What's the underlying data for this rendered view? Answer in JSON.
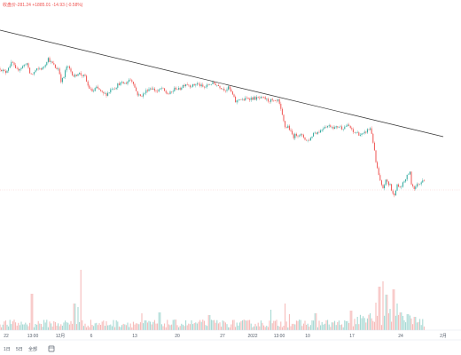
{
  "header": {
    "ohlc_text": "收盘价-281.24 +1885.01 -14.93 (-0.58%)",
    "change_color": "#ef5350"
  },
  "timeframes": [
    "1日",
    "5日",
    "全部"
  ],
  "colors": {
    "up": "#26a69a",
    "down": "#ef5350",
    "up_volume": "#9fd6cf",
    "down_volume": "#f5b5b3",
    "trendline": "#333333",
    "price_line": "#f8c8c6",
    "axis_text": "#555e6b"
  },
  "chart_data": {
    "type": "candlestick",
    "x_ticks": [
      "22",
      "13:00",
      "12月",
      "6",
      "13",
      "20",
      "27",
      "2022",
      "13:00",
      "10",
      "17",
      "24",
      "2月"
    ],
    "price_range": [
      0,
      100
    ],
    "volume_range": [
      0,
      100
    ],
    "anchors": [
      [
        0,
        72
      ],
      [
        6,
        70
      ],
      [
        10,
        73
      ],
      [
        14,
        75
      ],
      [
        18,
        71
      ],
      [
        22,
        72
      ],
      [
        26,
        73
      ],
      [
        30,
        75
      ],
      [
        33,
        70
      ],
      [
        36,
        69
      ],
      [
        40,
        71
      ],
      [
        44,
        72
      ],
      [
        48,
        72
      ],
      [
        51,
        74
      ],
      [
        54,
        77
      ],
      [
        57,
        75
      ],
      [
        60,
        74
      ],
      [
        63,
        72
      ],
      [
        66,
        72
      ],
      [
        69,
        66
      ],
      [
        72,
        68
      ],
      [
        75,
        73
      ],
      [
        78,
        72
      ],
      [
        81,
        70
      ],
      [
        84,
        68
      ],
      [
        88,
        70
      ],
      [
        92,
        69
      ],
      [
        96,
        68
      ],
      [
        99,
        64
      ],
      [
        102,
        62
      ],
      [
        105,
        61
      ],
      [
        108,
        63
      ],
      [
        112,
        62
      ],
      [
        116,
        60
      ],
      [
        120,
        60
      ],
      [
        123,
        61
      ],
      [
        126,
        63
      ],
      [
        130,
        63
      ],
      [
        134,
        65
      ],
      [
        138,
        65
      ],
      [
        142,
        65
      ],
      [
        146,
        67
      ],
      [
        150,
        66
      ],
      [
        152,
        63
      ],
      [
        155,
        60
      ],
      [
        158,
        59
      ],
      [
        162,
        60
      ],
      [
        166,
        62
      ],
      [
        170,
        63
      ],
      [
        174,
        62
      ],
      [
        178,
        61
      ],
      [
        182,
        63
      ],
      [
        186,
        61
      ],
      [
        190,
        60
      ],
      [
        194,
        61
      ],
      [
        198,
        63
      ],
      [
        202,
        62
      ],
      [
        206,
        64
      ],
      [
        210,
        65
      ],
      [
        214,
        64
      ],
      [
        218,
        64
      ],
      [
        222,
        65
      ],
      [
        226,
        64
      ],
      [
        230,
        63
      ],
      [
        234,
        64
      ],
      [
        238,
        65
      ],
      [
        242,
        65
      ],
      [
        246,
        64
      ],
      [
        250,
        63
      ],
      [
        254,
        62
      ],
      [
        258,
        63
      ],
      [
        262,
        60
      ],
      [
        264,
        58
      ],
      [
        266,
        56
      ],
      [
        270,
        58
      ],
      [
        274,
        57
      ],
      [
        278,
        58
      ],
      [
        282,
        58
      ],
      [
        286,
        58
      ],
      [
        290,
        58
      ],
      [
        294,
        58
      ],
      [
        298,
        58
      ],
      [
        302,
        57
      ],
      [
        306,
        57
      ],
      [
        310,
        56
      ],
      [
        314,
        57
      ],
      [
        317,
        52
      ],
      [
        320,
        47
      ],
      [
        322,
        44
      ],
      [
        325,
        45
      ],
      [
        328,
        42
      ],
      [
        331,
        40
      ],
      [
        334,
        41
      ],
      [
        338,
        41
      ],
      [
        342,
        40
      ],
      [
        346,
        38
      ],
      [
        350,
        39
      ],
      [
        354,
        42
      ],
      [
        358,
        42
      ],
      [
        362,
        43
      ],
      [
        366,
        45
      ],
      [
        370,
        45
      ],
      [
        374,
        45
      ],
      [
        378,
        44
      ],
      [
        382,
        45
      ],
      [
        386,
        44
      ],
      [
        390,
        45
      ],
      [
        394,
        45
      ],
      [
        398,
        42
      ],
      [
        402,
        42
      ],
      [
        406,
        41
      ],
      [
        410,
        41
      ],
      [
        414,
        43
      ],
      [
        418,
        44
      ],
      [
        420,
        40
      ],
      [
        422,
        34
      ],
      [
        424,
        28
      ],
      [
        426,
        24
      ],
      [
        428,
        20
      ],
      [
        430,
        17
      ],
      [
        432,
        16
      ],
      [
        434,
        18
      ],
      [
        436,
        20
      ],
      [
        438,
        17
      ],
      [
        440,
        18
      ],
      [
        442,
        14
      ],
      [
        444,
        12
      ],
      [
        446,
        15
      ],
      [
        448,
        17
      ],
      [
        452,
        16
      ],
      [
        456,
        19
      ],
      [
        460,
        22
      ],
      [
        462,
        24
      ],
      [
        464,
        18
      ],
      [
        467,
        16
      ],
      [
        470,
        17
      ],
      [
        472,
        18
      ],
      [
        474,
        18
      ],
      [
        476,
        20
      ],
      [
        479,
        20
      ]
    ],
    "volume_spikes": [
      [
        36,
        41
      ],
      [
        91,
        68
      ],
      [
        84,
        30
      ],
      [
        88,
        26
      ],
      [
        160,
        19
      ],
      [
        180,
        20
      ],
      [
        236,
        17
      ],
      [
        306,
        23
      ],
      [
        322,
        30
      ],
      [
        326,
        18
      ],
      [
        356,
        19
      ],
      [
        396,
        22
      ],
      [
        418,
        19
      ],
      [
        424,
        31
      ],
      [
        428,
        49
      ],
      [
        432,
        55
      ],
      [
        436,
        40
      ],
      [
        440,
        24
      ],
      [
        444,
        46
      ],
      [
        448,
        30
      ],
      [
        452,
        20
      ],
      [
        460,
        18
      ],
      [
        468,
        15
      ]
    ],
    "trendline": [
      [
        0,
        90
      ],
      [
        100,
        80
      ],
      [
        200,
        70
      ],
      [
        300,
        60
      ],
      [
        400,
        50
      ],
      [
        500,
        40
      ]
    ],
    "last_price_level": 15
  }
}
